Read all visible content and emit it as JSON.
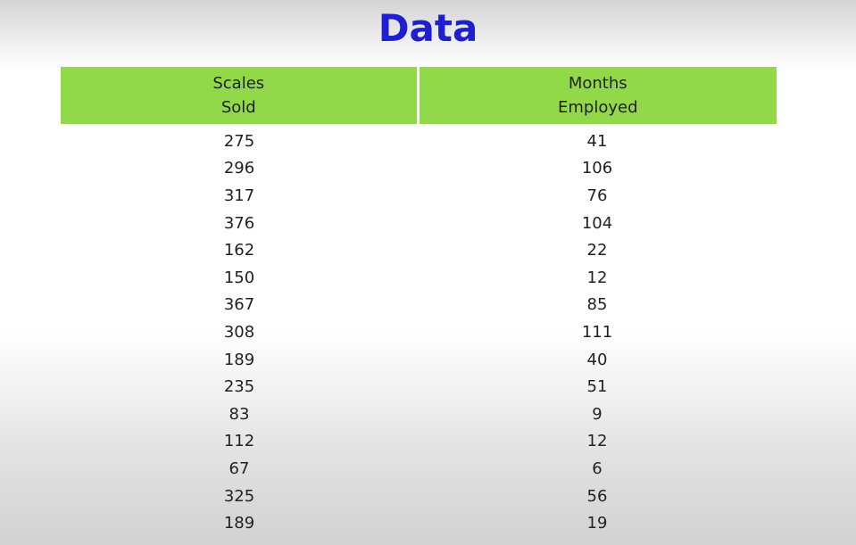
{
  "title": "Data",
  "table": {
    "headers": [
      [
        "Scales",
        "Sold"
      ],
      [
        "Months",
        "Employed"
      ]
    ],
    "rows": [
      [
        "275",
        "41"
      ],
      [
        "296",
        "106"
      ],
      [
        "317",
        "76"
      ],
      [
        "376",
        "104"
      ],
      [
        "162",
        "22"
      ],
      [
        "150",
        "12"
      ],
      [
        "367",
        "85"
      ],
      [
        "308",
        "111"
      ],
      [
        "189",
        "40"
      ],
      [
        "235",
        "51"
      ],
      [
        "83",
        "9"
      ],
      [
        "112",
        "12"
      ],
      [
        "67",
        "6"
      ],
      [
        "325",
        "56"
      ],
      [
        "189",
        "19"
      ]
    ]
  },
  "colors": {
    "title": "#1f1fd0",
    "header_fill": "#92d94a",
    "text": "#222222"
  }
}
